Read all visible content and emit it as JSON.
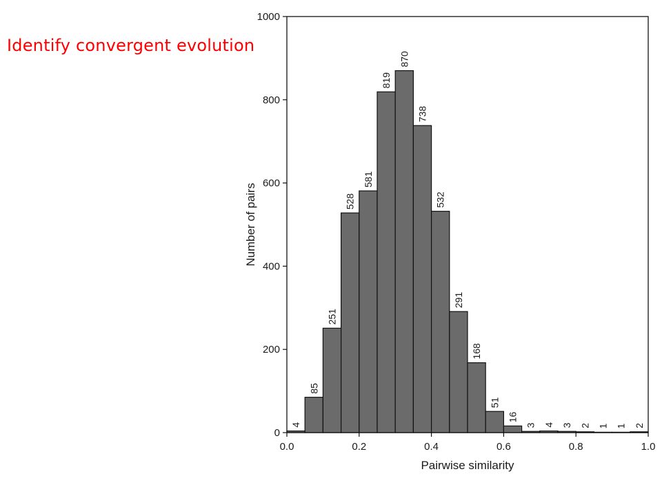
{
  "slide": {
    "title": "Identify convergent evolution",
    "title_color": "#ff0000"
  },
  "chart_data": {
    "type": "bar",
    "title": "",
    "xlabel": "Pairwise similarity",
    "ylabel": "Number of pairs",
    "xlim": [
      0.0,
      1.0
    ],
    "ylim": [
      0,
      1000
    ],
    "bin_width": 0.05,
    "bin_starts": [
      0.0,
      0.05,
      0.1,
      0.15,
      0.2,
      0.25,
      0.3,
      0.35,
      0.4,
      0.45,
      0.5,
      0.55,
      0.6,
      0.65,
      0.7,
      0.75,
      0.8,
      0.85,
      0.9,
      0.95
    ],
    "values": [
      4,
      85,
      251,
      528,
      581,
      819,
      870,
      738,
      532,
      291,
      168,
      51,
      16,
      3,
      4,
      3,
      2,
      1,
      1,
      2
    ],
    "x_ticks": [
      0.0,
      0.2,
      0.4,
      0.6,
      0.8,
      1.0
    ],
    "x_tick_labels": [
      "0.0",
      "0.2",
      "0.4",
      "0.6",
      "0.8",
      "1.0"
    ],
    "y_ticks": [
      0,
      200,
      400,
      600,
      800,
      1000
    ],
    "y_tick_labels": [
      "0",
      "200",
      "400",
      "600",
      "800",
      "1000"
    ],
    "grid": false,
    "legend": "none",
    "bar_color": "#6b6b6b",
    "bar_edge_color": "#111111"
  }
}
